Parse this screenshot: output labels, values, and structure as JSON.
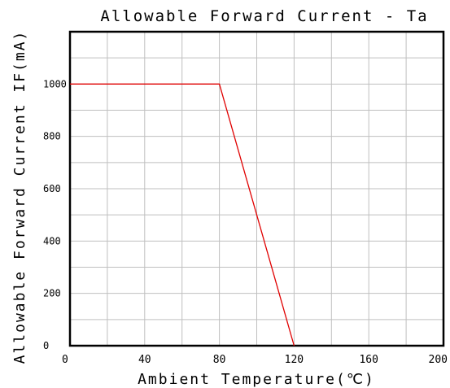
{
  "chart_data": {
    "type": "line",
    "title": "Allowable Forward Current - Ta",
    "xlabel": "Ambient Temperature(℃)",
    "ylabel": "Allowable Forward Current IF(mA)",
    "xlim": [
      0,
      200
    ],
    "ylim": [
      0,
      1000
    ],
    "x_ticks": [
      0,
      40,
      80,
      120,
      160,
      200
    ],
    "x_tick_labels": [
      "0",
      "40",
      "80",
      "120",
      "160",
      "200"
    ],
    "y_ticks": [
      0,
      200,
      400,
      600,
      800,
      1000
    ],
    "y_tick_labels": [
      "0",
      "200",
      "400",
      "600",
      "800",
      "1000"
    ],
    "grid": true,
    "legend": "none",
    "series": [
      {
        "color": "#e00000",
        "x": [
          0,
          80,
          120
        ],
        "y": [
          1000,
          1000,
          0
        ]
      }
    ]
  }
}
